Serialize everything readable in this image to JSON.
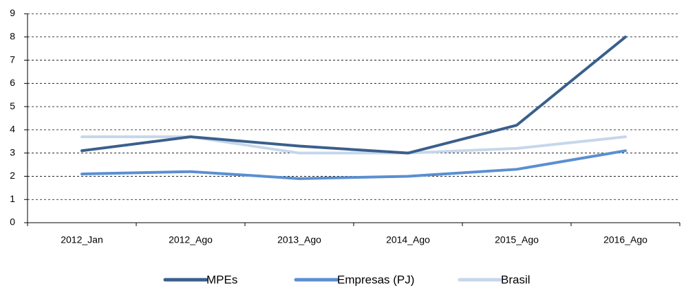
{
  "chart_data": {
    "type": "line",
    "categories": [
      "2012_Jan",
      "2012_Ago",
      "2013_Ago",
      "2014_Ago",
      "2015_Ago",
      "2016_Ago"
    ],
    "series": [
      {
        "name": "MPEs",
        "color": "#3a5f8c",
        "values": [
          3.1,
          3.7,
          3.3,
          3.0,
          4.2,
          8.0
        ]
      },
      {
        "name": "Empresas (PJ)",
        "color": "#5b8fd0",
        "values": [
          2.1,
          2.2,
          1.9,
          2.0,
          2.3,
          3.1
        ]
      },
      {
        "name": "Brasil",
        "color": "#c6d7ec",
        "values": [
          3.7,
          3.7,
          3.0,
          3.0,
          3.2,
          3.7
        ]
      }
    ],
    "ylim": [
      0,
      9
    ],
    "yticks": [
      0,
      1,
      2,
      3,
      4,
      5,
      6,
      7,
      8,
      9
    ],
    "grid": true,
    "legend": "bottom"
  }
}
